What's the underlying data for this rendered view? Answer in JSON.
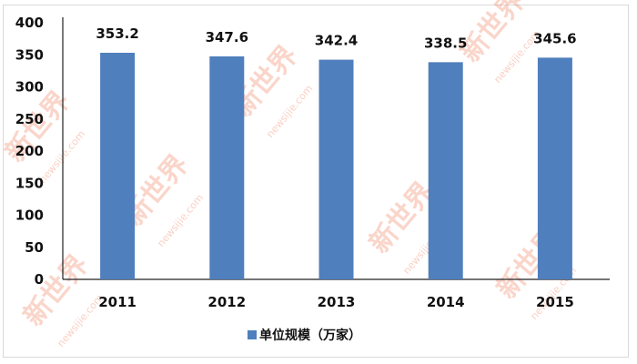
{
  "chart_data": {
    "type": "bar",
    "categories": [
      "2011",
      "2012",
      "2013",
      "2014",
      "2015"
    ],
    "series": [
      {
        "name": "单位规模（万家）",
        "values": [
          353.2,
          347.6,
          342.4,
          338.5,
          345.6
        ],
        "color": "#4f7fbd"
      }
    ],
    "data_labels": [
      "353.2",
      "347.6",
      "342.4",
      "338.5",
      "345.6"
    ],
    "ylim": [
      0,
      400
    ],
    "yticks": [
      0,
      50,
      100,
      150,
      200,
      250,
      300,
      350,
      400
    ],
    "grid": false,
    "legend_position": "bottom",
    "watermark": "新世界 newsijie.com"
  }
}
